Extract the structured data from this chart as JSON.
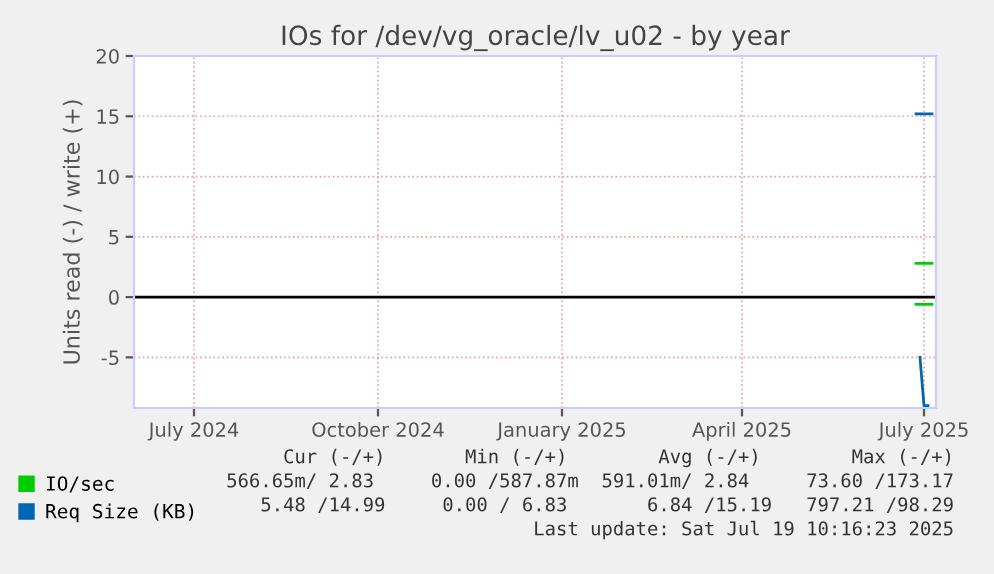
{
  "chart_data": {
    "type": "line",
    "title": "IOs for /dev/vg_oracle/lv_u02 - by year",
    "ylabel": "Units read (-) / write (+)",
    "xlim": [
      "2024-06-01",
      "2025-07-07"
    ],
    "xticks": [
      {
        "value": "2024-07-01",
        "label": "July 2024"
      },
      {
        "value": "2024-10-01",
        "label": "October 2024"
      },
      {
        "value": "2025-01-01",
        "label": "January 2025"
      },
      {
        "value": "2025-04-01",
        "label": "April 2025"
      },
      {
        "value": "2025-07-01",
        "label": "July 2025"
      }
    ],
    "ylim": [
      -9.2,
      20
    ],
    "yticks": [
      -5,
      0,
      5,
      10,
      15,
      20
    ],
    "grid": true,
    "legend": "bottom left",
    "ref_lines": [
      {
        "axis": "y",
        "value": 0,
        "color": "#000000"
      }
    ],
    "series": [
      {
        "name": "IO/sec",
        "color": "#00cc00",
        "x": [
          "2025-06-27",
          "2025-07-05"
        ],
        "values": [
          2.8,
          2.8
        ]
      },
      {
        "color": "#00cc00",
        "x": [
          "2025-06-27",
          "2025-07-05"
        ],
        "values": [
          -0.6,
          -0.6
        ]
      },
      {
        "name": "Req Size (KB)",
        "color": "#0066b3",
        "x": [
          "2025-06-27",
          "2025-07-05"
        ],
        "values": [
          15.2,
          15.2
        ]
      },
      {
        "color": "#0066b3",
        "x": [
          "2025-06-29",
          "2025-07-01",
          "2025-07-03"
        ],
        "values": [
          -5,
          -9,
          -9
        ]
      }
    ],
    "annotations": [
      "Cur (-/+)       Min (-/+)        Avg (-/+)        Max (-/+)",
      "566.65m/ 2.83     0.00 /587.87m  591.01m/ 2.84     73.60 /173.17",
      "5.48 /14.99     0.00 / 6.83       6.84 /15.19   797.21 /98.29",
      "Last update: Sat Jul 19 10:16:23 2025"
    ]
  }
}
